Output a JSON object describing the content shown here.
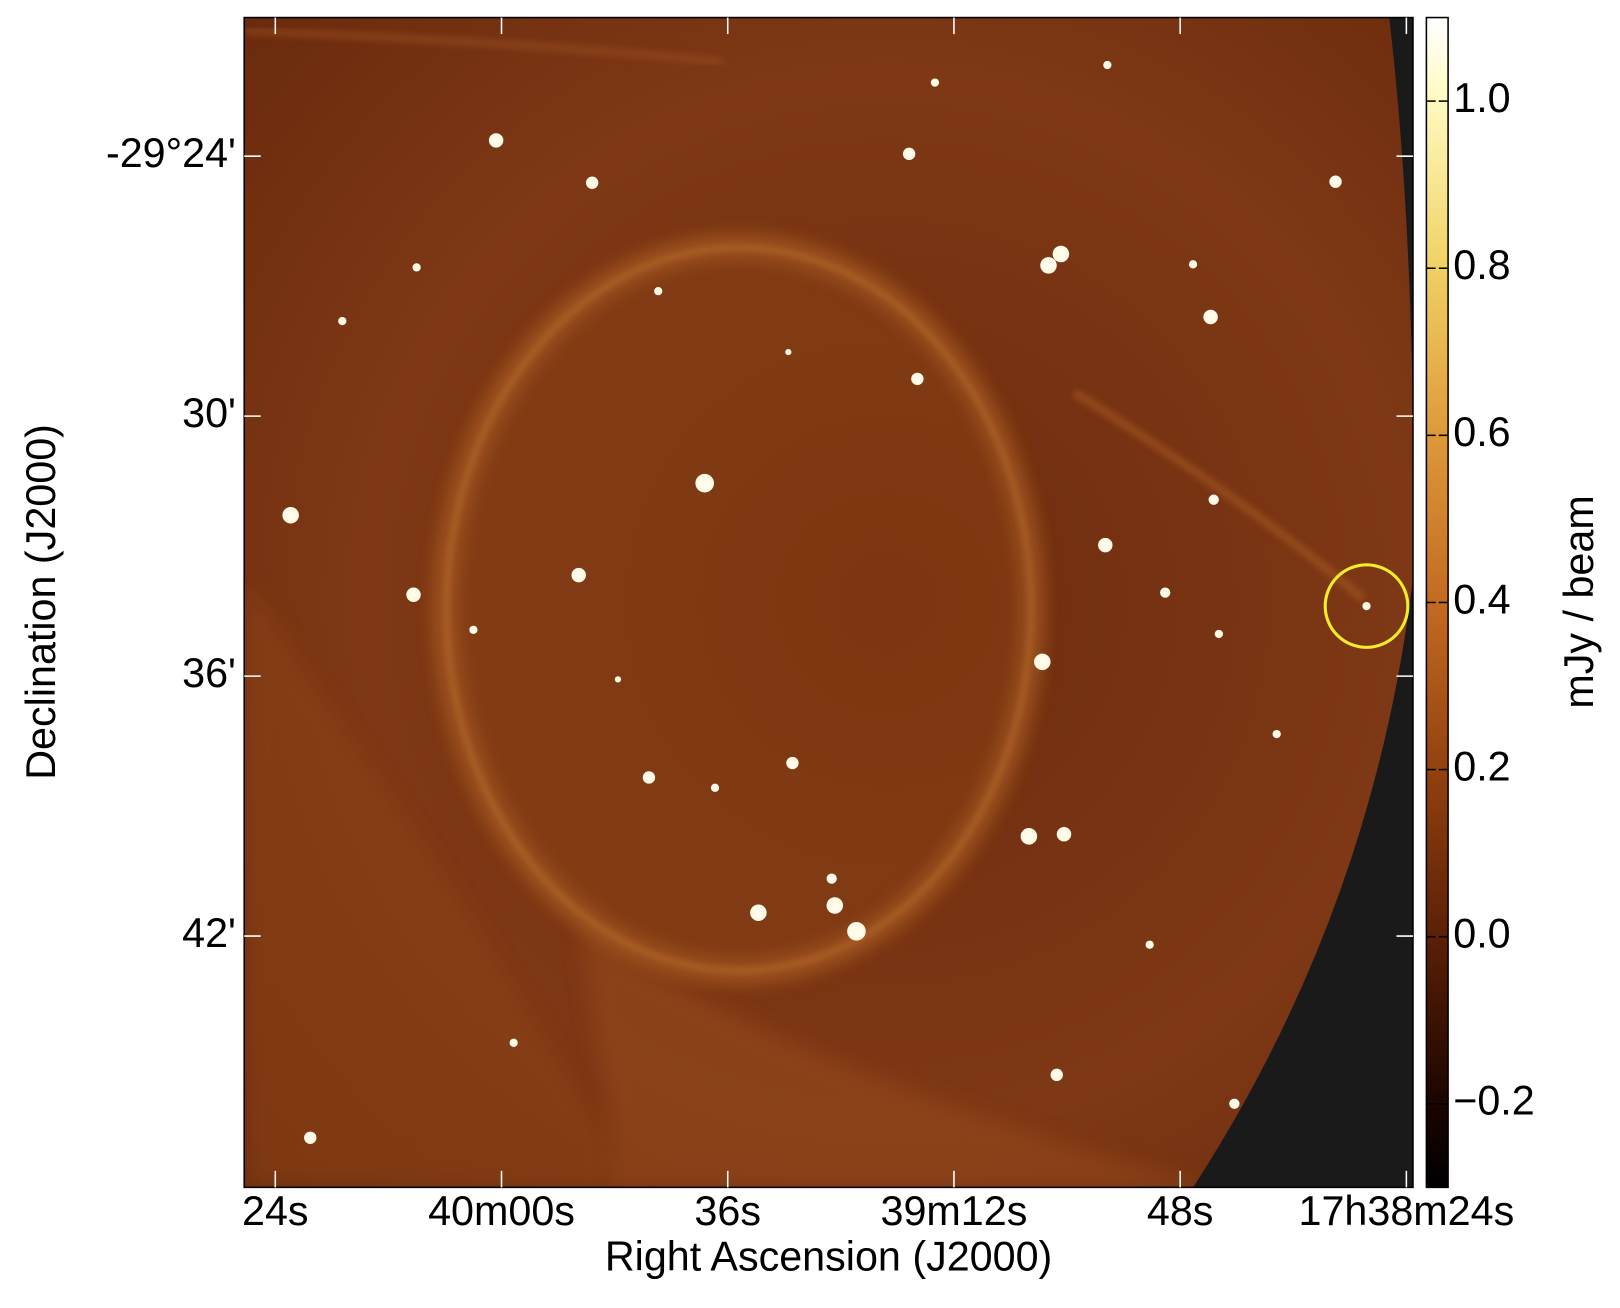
{
  "chart_data": {
    "type": "image",
    "xlabel": "Right Ascension (J2000)",
    "ylabel": "Declination (J2000)",
    "xlim": [
      63627.3,
      63503.3
    ],
    "xticks": [
      {
        "value": 63624,
        "label": "24s"
      },
      {
        "value": 63600,
        "label": "40m00s"
      },
      {
        "value": 63576,
        "label": "36s"
      },
      {
        "value": 63552,
        "label": "39m12s"
      },
      {
        "value": 63528,
        "label": "48s"
      },
      {
        "value": 63504,
        "label": "17h38m24s"
      }
    ],
    "ylim": [
      -1787.8,
      -1760.8
    ],
    "yticks": [
      {
        "value": -1764,
        "label": "-29°24'"
      },
      {
        "value": -1770,
        "label": "30'"
      },
      {
        "value": -1776,
        "label": "36'"
      },
      {
        "value": -1782,
        "label": "42'"
      }
    ],
    "colorbar": {
      "label": "mJy / beam",
      "lim": [
        -0.3,
        1.1
      ],
      "ticks": [
        {
          "value": 1,
          "label": "1.0"
        },
        0.8,
        0.6,
        0.4,
        0.2,
        {
          "value": 0,
          "label": "0.0"
        },
        {
          "value": -0.2,
          "label": "−0.2"
        }
      ]
    }
  }
}
